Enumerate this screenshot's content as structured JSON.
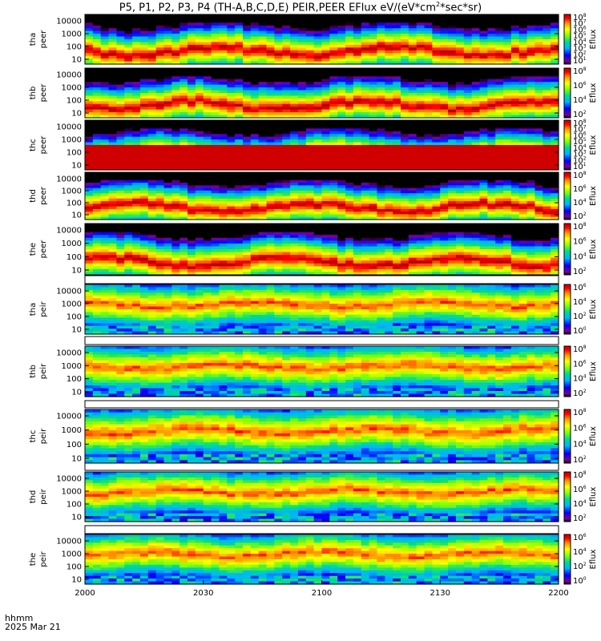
{
  "title": "P5, P1, P2, P3, P4 (TH-A,B,C,D,E) PEIR,PEER EFlux eV/(eV*cm",
  "title_sup": "2",
  "title_tail": "*sec*sr)",
  "footer": {
    "label1": "hhmm",
    "label2": "2025 Mar 21"
  },
  "x_ticks": [
    "2000",
    "2030",
    "2100",
    "2130",
    "2200"
  ],
  "colors": {
    "frame": "#000000",
    "gap": "#ffffff"
  },
  "chart_data": {
    "type": "heatmap",
    "x_range": [
      "2000",
      "2200"
    ],
    "y_scale": "log",
    "y_ticks": [
      "10",
      "100",
      "1000",
      "10000"
    ],
    "colorbar_label": "Eflux",
    "panels": [
      {
        "l1": "tha",
        "l2": "peer",
        "cb_ticks": [
          "10",
          "10",
          "10",
          "10",
          "10",
          "10",
          "10",
          "10"
        ],
        "cb_exp": [
          "1",
          "2",
          "3",
          "4",
          "5",
          "6",
          "7",
          "8"
        ],
        "cb_range": [
          1,
          8
        ]
      },
      {
        "l1": "thb",
        "l2": "peer",
        "cb_ticks": [
          "10",
          "10",
          "10",
          "10"
        ],
        "cb_exp": [
          "2",
          "4",
          "6",
          "8"
        ],
        "cb_range": [
          1,
          8
        ]
      },
      {
        "l1": "thc",
        "l2": "peer",
        "cb_ticks": [
          "10",
          "10",
          "10",
          "10",
          "10",
          "10",
          "10",
          "10"
        ],
        "cb_exp": [
          "1",
          "2",
          "3",
          "4",
          "5",
          "6",
          "7",
          "8"
        ],
        "cb_range": [
          1,
          8
        ]
      },
      {
        "l1": "thd",
        "l2": "peer",
        "cb_ticks": [
          "10",
          "10",
          "10",
          "10"
        ],
        "cb_exp": [
          "2",
          "4",
          "6",
          "8"
        ],
        "cb_range": [
          1,
          8
        ]
      },
      {
        "l1": "the",
        "l2": "peer",
        "cb_ticks": [
          "10",
          "10",
          "10",
          "10"
        ],
        "cb_exp": [
          "2",
          "4",
          "6",
          "8"
        ],
        "cb_range": [
          1,
          8
        ]
      },
      {
        "l1": "tha",
        "l2": "peir",
        "cb_ticks": [
          "10",
          "10",
          "10",
          "10"
        ],
        "cb_exp": [
          "0",
          "2",
          "4",
          "6"
        ],
        "cb_range": [
          0,
          7
        ]
      },
      {
        "l1": "thb",
        "l2": "peir",
        "cb_ticks": [
          "10",
          "10",
          "10",
          "10"
        ],
        "cb_exp": [
          "2",
          "4",
          "6",
          "8"
        ],
        "cb_range": [
          1,
          8
        ]
      },
      {
        "l1": "thc",
        "l2": "peir",
        "cb_ticks": [
          "10",
          "10",
          "10",
          "10"
        ],
        "cb_exp": [
          "2",
          "4",
          "6",
          "8"
        ],
        "cb_range": [
          1,
          8
        ]
      },
      {
        "l1": "thd",
        "l2": "peir",
        "cb_ticks": [
          "10",
          "10",
          "10",
          "10"
        ],
        "cb_exp": [
          "2",
          "4",
          "6",
          "8"
        ],
        "cb_range": [
          1,
          8
        ]
      },
      {
        "l1": "the",
        "l2": "peir",
        "cb_ticks": [
          "10",
          "10",
          "10",
          "10"
        ],
        "cb_exp": [
          "0",
          "2",
          "4",
          "6"
        ],
        "cb_range": [
          0,
          7
        ]
      }
    ]
  }
}
